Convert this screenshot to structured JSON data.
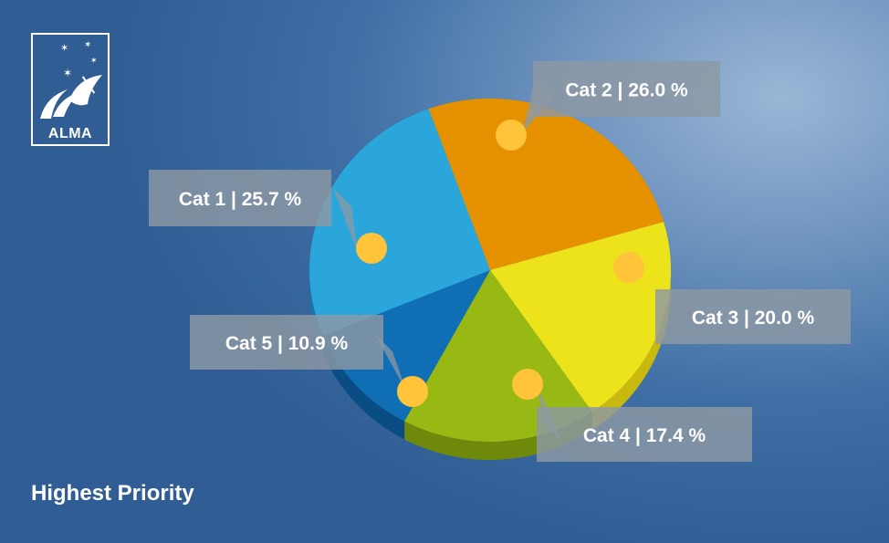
{
  "logo": {
    "text": "ALMA"
  },
  "footer": {
    "title": "Highest Priority"
  },
  "chart_data": {
    "type": "pie",
    "categories": [
      "Cat 1",
      "Cat 2",
      "Cat 3",
      "Cat 4",
      "Cat 5"
    ],
    "values": [
      25.7,
      26.0,
      20.0,
      17.4,
      10.9
    ],
    "labels": [
      "Cat 1 | 25.7 %",
      "Cat 2 | 26.0 %",
      "Cat 3 | 20.0 %",
      "Cat 4 | 17.4 %",
      "Cat 5 | 10.9 %"
    ],
    "colors": [
      "#2aa6db",
      "#e69200",
      "#ede31a",
      "#98b814",
      "#0f6eb4"
    ],
    "side_colors": [
      "#1a72a8",
      "#a86500",
      "#c9b80e",
      "#6f8a0b",
      "#0a4d85"
    ],
    "marker_color": "#ffc43a",
    "callout_color": "#8e98a4"
  }
}
